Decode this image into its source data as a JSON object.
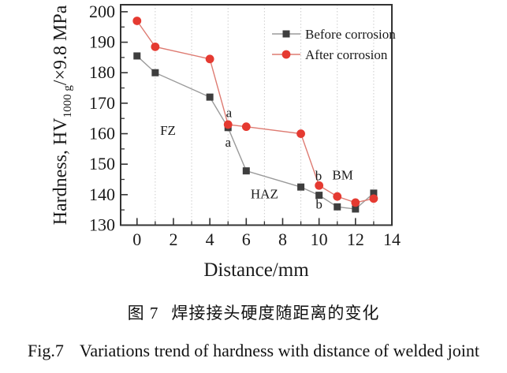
{
  "figure": {
    "caption_zh_label": "图 7",
    "caption_zh_text": "焊接接头硬度随距离的变化",
    "caption_en_label": "Fig.7",
    "caption_en_text": "Variations trend of hardness with distance of welded joint"
  },
  "colors": {
    "axis": "#333333",
    "grid": "#cccccc",
    "marker_black": "#3e3e3e",
    "line_gray": "#9a9a9a",
    "marker_red": "#e53a31",
    "line_red": "#de7b72"
  },
  "chart_data": {
    "type": "line",
    "title": "",
    "xlabel": "Distance/mm",
    "ylabel_prefix": "Hardness, HV",
    "ylabel_sub": "1000 g",
    "ylabel_suffix": "/×9.8 MPa",
    "xlim": [
      -0.9,
      14
    ],
    "ylim": [
      130,
      202.3
    ],
    "x_major_ticks": [
      0,
      2,
      4,
      6,
      8,
      10,
      12,
      14
    ],
    "x_minor_ticks": [
      1,
      3,
      5,
      7,
      9,
      11,
      13
    ],
    "y_major_ticks": [
      130,
      140,
      150,
      160,
      170,
      180,
      190,
      200
    ],
    "y_minor_ticks": [
      135,
      145,
      155,
      165,
      175,
      185,
      195
    ],
    "gridlines_x": [
      1,
      3,
      5,
      7,
      9,
      11,
      13
    ],
    "grid_on": true,
    "legend_position": "top-right-inside",
    "x": [
      0,
      1,
      4,
      5,
      6,
      9,
      10,
      11,
      12,
      13
    ],
    "series": [
      {
        "name": "Before corrosion",
        "marker": "square",
        "marker_color": "#3e3e3e",
        "line_color": "#9a9a9a",
        "values": [
          185.5,
          180,
          172,
          162,
          147.8,
          142.5,
          139.8,
          136,
          135.3,
          140.5
        ]
      },
      {
        "name": "After corrosion",
        "marker": "circle",
        "marker_color": "#e53a31",
        "line_color": "#de7b72",
        "values": [
          197,
          188.5,
          184.5,
          163,
          162.3,
          160,
          143,
          139.4,
          137.4,
          138.7
        ]
      }
    ],
    "annotations": [
      {
        "text": "a",
        "x": 5.05,
        "y": 167.0
      },
      {
        "text": "a",
        "x": 5.0,
        "y": 157.3
      },
      {
        "text": "b",
        "x": 9.97,
        "y": 146.3
      },
      {
        "text": "b",
        "x": 10.0,
        "y": 137.0
      },
      {
        "text": "FZ",
        "x": 1.7,
        "y": 161.2
      },
      {
        "text": "HAZ",
        "x": 7.0,
        "y": 140.4
      },
      {
        "text": "BM",
        "x": 11.3,
        "y": 146.5
      }
    ]
  }
}
